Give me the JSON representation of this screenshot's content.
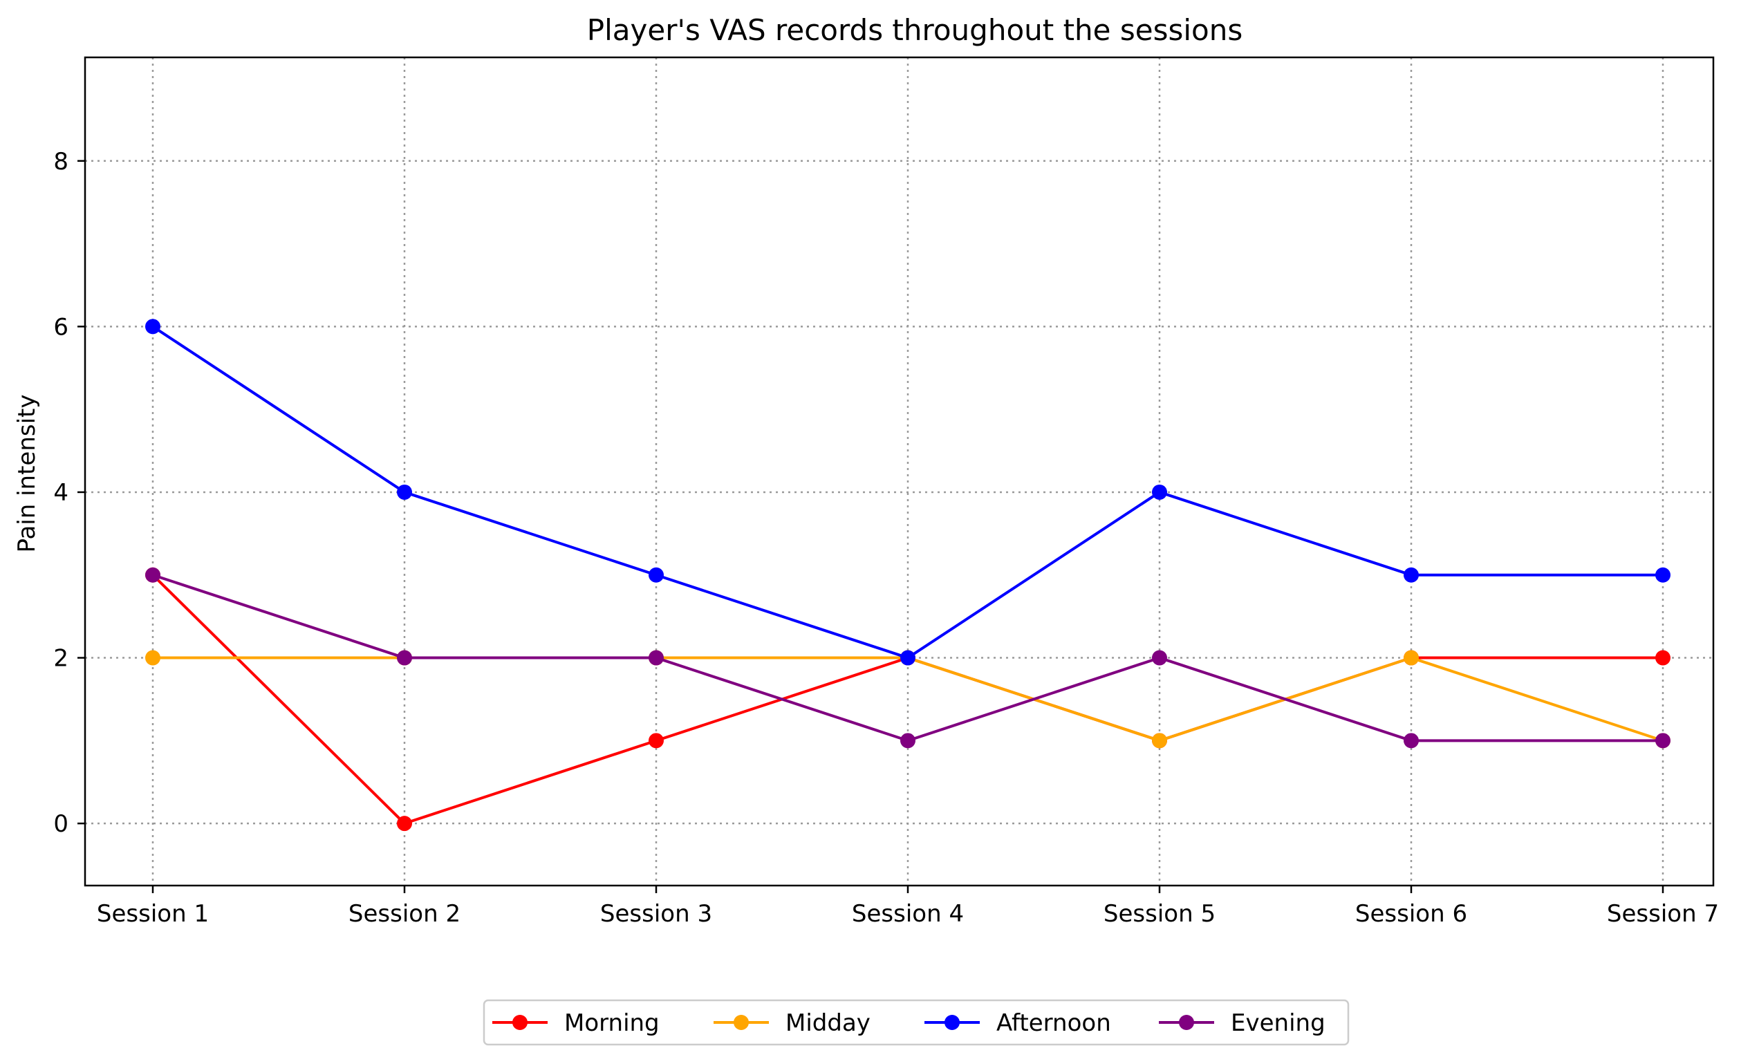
{
  "chart_data": {
    "type": "line",
    "title": "Player's VAS records throughout the sessions",
    "xlabel": "",
    "ylabel": "Pain intensity",
    "categories": [
      "Session 1",
      "Session 2",
      "Session 3",
      "Session 4",
      "Session 5",
      "Session 6",
      "Session 7"
    ],
    "yticks": [
      0,
      2,
      4,
      6,
      8
    ],
    "ylim": [
      -0.75,
      9.25
    ],
    "grid": true,
    "legend_position": "bottom-center",
    "series": [
      {
        "name": "Morning",
        "color": "#ff0000",
        "values": [
          3,
          0,
          1,
          2,
          1,
          2,
          2
        ]
      },
      {
        "name": "Midday",
        "color": "#ffa500",
        "values": [
          2,
          2,
          2,
          2,
          1,
          2,
          1
        ]
      },
      {
        "name": "Afternoon",
        "color": "#0000ff",
        "values": [
          6,
          4,
          3,
          2,
          4,
          3,
          3
        ]
      },
      {
        "name": "Evening",
        "color": "#800080",
        "values": [
          3,
          2,
          2,
          1,
          2,
          1,
          1
        ]
      }
    ]
  }
}
